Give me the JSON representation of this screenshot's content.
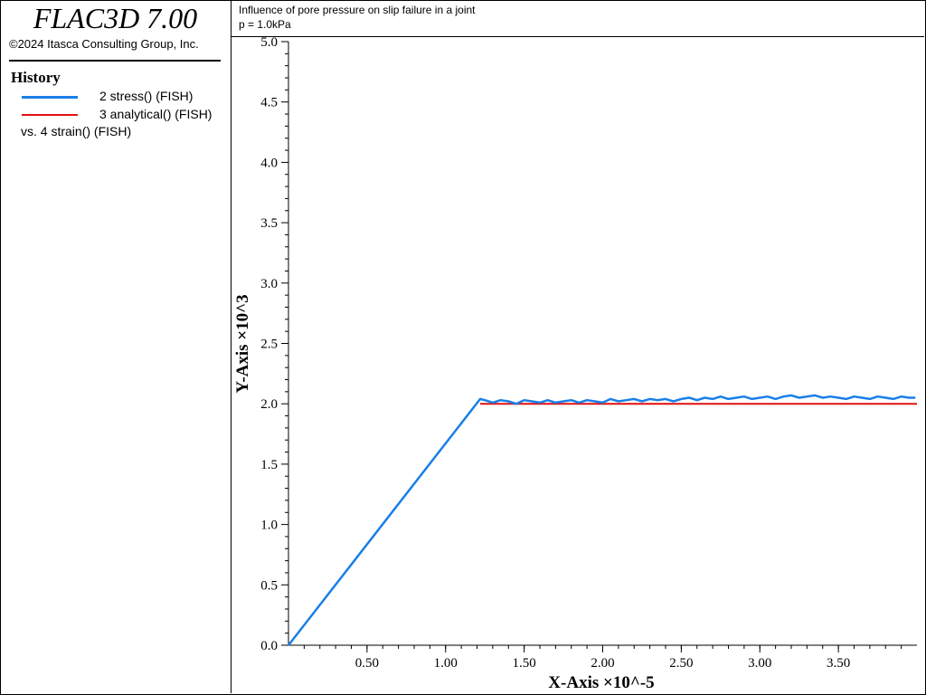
{
  "app": {
    "title": "FLAC3D 7.00",
    "copyright": "©2024 Itasca Consulting Group, Inc."
  },
  "legend": {
    "heading": "History",
    "entries": [
      {
        "label": "2 stress() (FISH)",
        "color": "#1a7fe8"
      },
      {
        "label": "3 analytical() (FISH)",
        "color": "#e01010"
      }
    ],
    "vs_label": "vs. 4 strain() (FISH)"
  },
  "caption": {
    "line1": "Influence of pore pressure on slip failure in a joint",
    "line2": "p = 1.0kPa"
  },
  "chart_data": {
    "type": "line",
    "xlabel": "X-Axis ×10^-5",
    "ylabel": "Y-Axis ×10^3",
    "xlim": [
      0.0,
      4.0
    ],
    "ylim": [
      0.0,
      5.0
    ],
    "xticks": [
      "0.50",
      "1.00",
      "1.50",
      "2.00",
      "2.50",
      "3.00",
      "3.50"
    ],
    "yticks": [
      "0.0",
      "0.5",
      "1.0",
      "1.5",
      "2.0",
      "2.5",
      "3.0",
      "3.5",
      "4.0",
      "4.5",
      "5.0"
    ],
    "grid": false,
    "series": [
      {
        "name": "2 stress() (FISH)",
        "color": "#1a7fe8",
        "x": [
          0.0,
          1.22,
          1.25,
          1.3,
          1.35,
          1.4,
          1.45,
          1.5,
          1.55,
          1.6,
          1.65,
          1.7,
          1.75,
          1.8,
          1.85,
          1.9,
          1.95,
          2.0,
          2.05,
          2.1,
          2.15,
          2.2,
          2.25,
          2.3,
          2.35,
          2.4,
          2.45,
          2.5,
          2.55,
          2.6,
          2.65,
          2.7,
          2.75,
          2.8,
          2.85,
          2.9,
          2.95,
          3.0,
          3.05,
          3.1,
          3.15,
          3.2,
          3.25,
          3.3,
          3.35,
          3.4,
          3.45,
          3.5,
          3.55,
          3.6,
          3.65,
          3.7,
          3.75,
          3.8,
          3.85,
          3.9,
          3.95,
          3.99
        ],
        "y": [
          0.0,
          2.04,
          2.03,
          2.01,
          2.03,
          2.02,
          2.0,
          2.03,
          2.02,
          2.01,
          2.03,
          2.01,
          2.02,
          2.03,
          2.01,
          2.03,
          2.02,
          2.01,
          2.04,
          2.02,
          2.03,
          2.04,
          2.02,
          2.04,
          2.03,
          2.04,
          2.02,
          2.04,
          2.05,
          2.03,
          2.05,
          2.04,
          2.06,
          2.04,
          2.05,
          2.06,
          2.04,
          2.05,
          2.06,
          2.04,
          2.06,
          2.07,
          2.05,
          2.06,
          2.07,
          2.05,
          2.06,
          2.05,
          2.04,
          2.06,
          2.05,
          2.04,
          2.06,
          2.05,
          2.04,
          2.06,
          2.05,
          2.05
        ]
      },
      {
        "name": "3 analytical() (FISH)",
        "color": "#e01010",
        "x": [
          1.22,
          4.0
        ],
        "y": [
          2.0,
          2.0
        ]
      }
    ]
  }
}
